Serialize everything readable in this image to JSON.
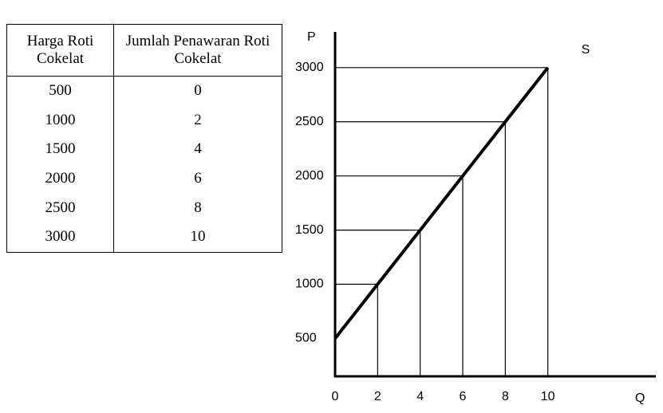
{
  "table": {
    "headers": [
      "Harga Roti Cokelat",
      "Jumlah Penawaran Roti Cokelat"
    ]
  },
  "chart_data": {
    "type": "line",
    "x": [
      0,
      2,
      4,
      6,
      8,
      10
    ],
    "values": [
      500,
      1000,
      1500,
      2000,
      2500,
      3000
    ],
    "series_label": "S",
    "xlabel": "Q",
    "ylabel": "P",
    "xlim": [
      0,
      15
    ],
    "ylim": [
      150,
      3330
    ],
    "xticks": [
      0,
      2,
      4,
      6,
      8,
      10
    ],
    "yticks": [
      500,
      1000,
      1500,
      2000,
      2500,
      3000
    ],
    "color": "#000000",
    "guides": true
  }
}
